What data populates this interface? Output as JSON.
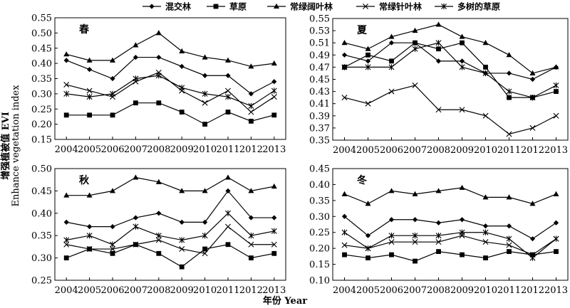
{
  "legend": [
    {
      "name": "混交林",
      "marker": "diamond"
    },
    {
      "name": "草原",
      "marker": "square"
    },
    {
      "name": "常绿阔叶林",
      "marker": "triangle"
    },
    {
      "name": "常绿针叶林",
      "marker": "x"
    },
    {
      "name": "多树的草原",
      "marker": "star"
    }
  ],
  "ylabel_cn": "增强植被值 EVI",
  "ylabel_en": "Enhance vegetation index",
  "xlabel": "年份 Year",
  "chart_data": [
    {
      "type": "line",
      "title": "春",
      "categories": [
        "2004",
        "2005",
        "2006",
        "2007",
        "2008",
        "2009",
        "2010",
        "2011",
        "2012",
        "2013"
      ],
      "ylim": [
        0.15,
        0.55
      ],
      "yticks": [
        "0.15",
        "0.20",
        "0.25",
        "0.30",
        "0.35",
        "0.40",
        "0.45",
        "0.50",
        "0.55"
      ],
      "series": [
        {
          "name": "混交林",
          "values": [
            0.41,
            0.38,
            0.35,
            0.42,
            0.42,
            0.39,
            0.36,
            0.36,
            0.3,
            0.34
          ]
        },
        {
          "name": "草原",
          "values": [
            0.23,
            0.23,
            0.23,
            0.27,
            0.27,
            0.24,
            0.2,
            0.24,
            0.21,
            0.23
          ]
        },
        {
          "name": "常绿阔叶林",
          "values": [
            0.43,
            0.41,
            0.41,
            0.46,
            0.5,
            0.44,
            0.42,
            0.41,
            0.39,
            0.4
          ]
        },
        {
          "name": "常绿针叶林",
          "values": [
            0.33,
            0.31,
            0.29,
            0.34,
            0.37,
            0.31,
            0.27,
            0.31,
            0.24,
            0.29
          ]
        },
        {
          "name": "多树的草原",
          "values": [
            0.3,
            0.29,
            0.3,
            0.35,
            0.36,
            0.32,
            0.3,
            0.29,
            0.26,
            0.31
          ]
        }
      ]
    },
    {
      "type": "line",
      "title": "夏",
      "categories": [
        "2004",
        "2005",
        "2006",
        "2007",
        "2008",
        "2009",
        "2010",
        "2011",
        "2012",
        "2013"
      ],
      "ylim": [
        0.35,
        0.55
      ],
      "yticks": [
        "0.35",
        "0.37",
        "0.39",
        "0.41",
        "0.43",
        "0.45",
        "0.47",
        "0.49",
        "0.51",
        "0.53",
        "0.55"
      ],
      "series": [
        {
          "name": "混交林",
          "values": [
            0.49,
            0.48,
            0.51,
            0.51,
            0.48,
            0.48,
            0.46,
            0.46,
            0.45,
            0.47
          ]
        },
        {
          "name": "草原",
          "values": [
            0.47,
            0.49,
            0.48,
            0.51,
            0.5,
            0.51,
            0.47,
            0.42,
            0.42,
            0.43
          ]
        },
        {
          "name": "常绿阔叶林",
          "values": [
            0.51,
            0.5,
            0.52,
            0.53,
            0.54,
            0.52,
            0.51,
            0.49,
            0.46,
            0.47
          ]
        },
        {
          "name": "常绿针叶林",
          "values": [
            0.42,
            0.41,
            0.43,
            0.44,
            0.4,
            0.4,
            0.39,
            0.36,
            0.37,
            0.39
          ]
        },
        {
          "name": "多树的草原",
          "values": [
            0.47,
            0.47,
            0.47,
            0.5,
            0.51,
            0.47,
            0.46,
            0.43,
            0.42,
            0.44
          ]
        }
      ]
    },
    {
      "type": "line",
      "title": "秋",
      "categories": [
        "2004",
        "2005",
        "2006",
        "2007",
        "2008",
        "2009",
        "2010",
        "2011",
        "2012",
        "2013"
      ],
      "ylim": [
        0.25,
        0.5
      ],
      "yticks": [
        "0.25",
        "0.30",
        "0.35",
        "0.40",
        "0.45",
        "0.50"
      ],
      "series": [
        {
          "name": "混交林",
          "values": [
            0.38,
            0.37,
            0.37,
            0.39,
            0.4,
            0.38,
            0.38,
            0.45,
            0.39,
            0.39
          ]
        },
        {
          "name": "草原",
          "values": [
            0.3,
            0.32,
            0.31,
            0.33,
            0.31,
            0.28,
            0.32,
            0.33,
            0.3,
            0.31
          ]
        },
        {
          "name": "常绿阔叶林",
          "values": [
            0.44,
            0.44,
            0.45,
            0.48,
            0.47,
            0.45,
            0.45,
            0.48,
            0.45,
            0.46
          ]
        },
        {
          "name": "常绿针叶林",
          "values": [
            0.33,
            0.32,
            0.32,
            0.33,
            0.34,
            0.32,
            0.31,
            0.37,
            0.33,
            0.33
          ]
        },
        {
          "name": "多树的草原",
          "values": [
            0.34,
            0.35,
            0.33,
            0.37,
            0.35,
            0.34,
            0.35,
            0.4,
            0.35,
            0.36
          ]
        }
      ]
    },
    {
      "type": "line",
      "title": "冬",
      "categories": [
        "2004",
        "2005",
        "2006",
        "2007",
        "2008",
        "2009",
        "2010",
        "2011",
        "2012",
        "2013"
      ],
      "ylim": [
        0.1,
        0.45
      ],
      "yticks": [
        "0.10",
        "0.15",
        "0.20",
        "0.25",
        "0.30",
        "0.35",
        "0.40",
        "0.45"
      ],
      "series": [
        {
          "name": "混交林",
          "values": [
            0.3,
            0.24,
            0.29,
            0.29,
            0.28,
            0.29,
            0.27,
            0.27,
            0.23,
            0.28
          ]
        },
        {
          "name": "草原",
          "values": [
            0.18,
            0.17,
            0.18,
            0.16,
            0.19,
            0.18,
            0.17,
            0.19,
            0.18,
            0.19
          ]
        },
        {
          "name": "常绿阔叶林",
          "values": [
            0.37,
            0.34,
            0.38,
            0.37,
            0.38,
            0.39,
            0.36,
            0.36,
            0.34,
            0.37
          ]
        },
        {
          "name": "常绿针叶林",
          "values": [
            0.21,
            0.2,
            0.22,
            0.22,
            0.22,
            0.24,
            0.22,
            0.21,
            0.18,
            0.23
          ]
        },
        {
          "name": "多树的草原",
          "values": [
            0.25,
            0.2,
            0.24,
            0.24,
            0.24,
            0.25,
            0.25,
            0.23,
            0.17,
            0.23
          ]
        }
      ]
    }
  ]
}
